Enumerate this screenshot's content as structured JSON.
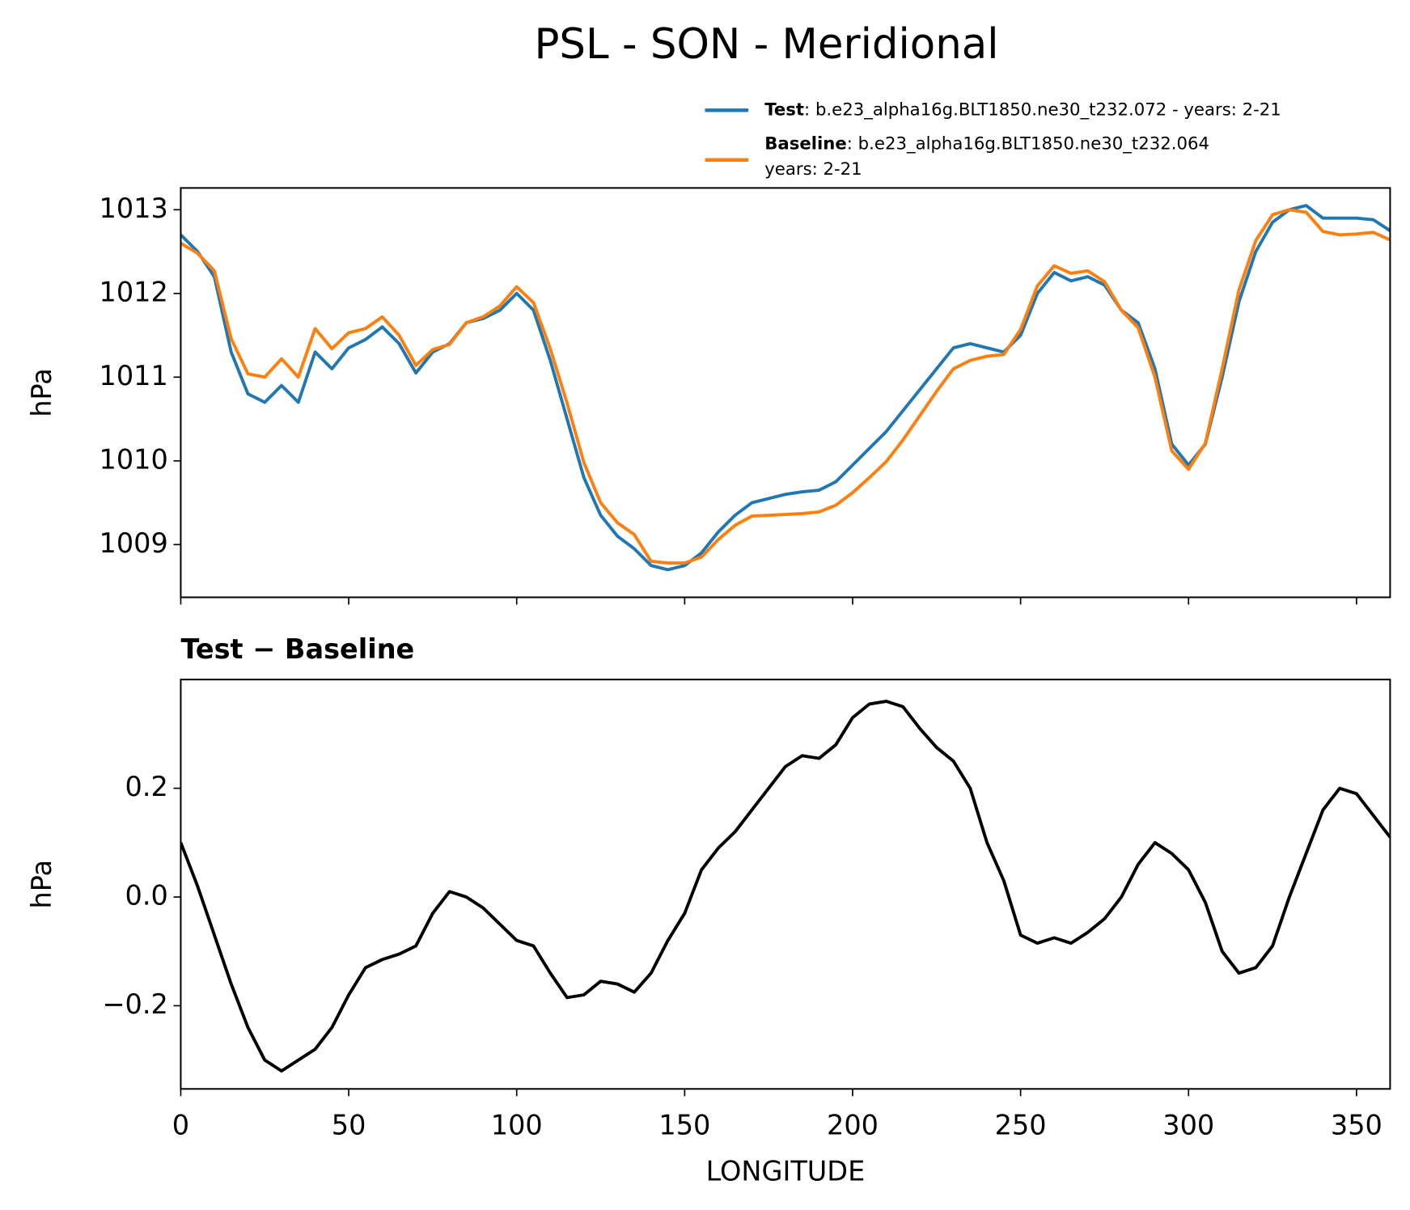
{
  "chart_data": [
    {
      "type": "line",
      "title": "PSL - SON - Meridional",
      "title_loc": "center",
      "ylabel": "hPa",
      "x": [
        0,
        5,
        10,
        15,
        20,
        25,
        30,
        35,
        40,
        45,
        50,
        55,
        60,
        65,
        70,
        75,
        80,
        85,
        90,
        95,
        100,
        105,
        110,
        115,
        120,
        125,
        130,
        135,
        140,
        145,
        150,
        155,
        160,
        165,
        170,
        175,
        180,
        185,
        190,
        195,
        200,
        205,
        210,
        215,
        220,
        225,
        230,
        235,
        240,
        245,
        250,
        255,
        260,
        265,
        270,
        275,
        280,
        285,
        290,
        295,
        300,
        305,
        310,
        315,
        320,
        325,
        330,
        335,
        340,
        345,
        350,
        355,
        360
      ],
      "xlim": [
        0,
        360
      ],
      "xticks": [
        0,
        50,
        100,
        150,
        200,
        250,
        300,
        350
      ],
      "show_xticklabels": false,
      "ylim": [
        1008.37,
        1013.26
      ],
      "yticks": [
        1009,
        1010,
        1011,
        1012,
        1013
      ],
      "legend": "above right",
      "series": [
        {
          "name": "Test",
          "label_lines": [
            ": b.e23_alpha16g.BLT1850.ne30_t232.072 - years: 2-21"
          ],
          "color": "#1f77b4",
          "values": [
            1012.7,
            1012.5,
            1012.2,
            1011.3,
            1010.8,
            1010.7,
            1010.9,
            1010.7,
            1011.3,
            1011.1,
            1011.35,
            1011.45,
            1011.6,
            1011.4,
            1011.05,
            1011.3,
            1011.4,
            1011.65,
            1011.7,
            1011.8,
            1012.0,
            1011.8,
            1011.2,
            1010.5,
            1009.8,
            1009.35,
            1009.1,
            1008.95,
            1008.75,
            1008.7,
            1008.75,
            1008.9,
            1009.15,
            1009.35,
            1009.5,
            1009.55,
            1009.6,
            1009.63,
            1009.65,
            1009.75,
            1009.95,
            1010.15,
            1010.35,
            1010.6,
            1010.85,
            1011.1,
            1011.35,
            1011.4,
            1011.35,
            1011.3,
            1011.5,
            1012.0,
            1012.25,
            1012.15,
            1012.2,
            1012.1,
            1011.8,
            1011.65,
            1011.1,
            1010.2,
            1009.95,
            1010.2,
            1011.0,
            1011.9,
            1012.5,
            1012.85,
            1013.0,
            1013.05,
            1012.9,
            1012.9,
            1012.9,
            1012.88,
            1012.75
          ]
        },
        {
          "name": "Baseline",
          "label_lines": [
            ": b.e23_alpha16g.BLT1850.ne30_t232.064",
            "years: 2-21"
          ],
          "color": "#ff7f0e",
          "values": [
            1012.6,
            1012.48,
            1012.27,
            1011.46,
            1011.04,
            1011.0,
            1011.22,
            1011.0,
            1011.58,
            1011.34,
            1011.53,
            1011.58,
            1011.72,
            1011.5,
            1011.14,
            1011.33,
            1011.39,
            1011.65,
            1011.72,
            1011.85,
            1012.08,
            1011.89,
            1011.34,
            1010.69,
            1009.98,
            1009.5,
            1009.26,
            1009.12,
            1008.8,
            1008.78,
            1008.78,
            1008.85,
            1009.06,
            1009.23,
            1009.34,
            1009.35,
            1009.36,
            1009.37,
            1009.39,
            1009.47,
            1009.62,
            1009.8,
            1009.99,
            1010.25,
            1010.54,
            1010.83,
            1011.1,
            1011.2,
            1011.25,
            1011.27,
            1011.57,
            1012.09,
            1012.33,
            1012.24,
            1012.27,
            1012.14,
            1011.8,
            1011.59,
            1011.0,
            1010.12,
            1009.9,
            1010.21,
            1011.1,
            1012.04,
            1012.63,
            1012.94,
            1013.0,
            1012.97,
            1012.74,
            1012.7,
            1012.71,
            1012.73,
            1012.64
          ]
        }
      ]
    },
    {
      "type": "line",
      "title": "Test − Baseline",
      "title_loc": "left",
      "ylabel": "hPa",
      "xlabel": "LONGITUDE",
      "x": [
        0,
        5,
        10,
        15,
        20,
        25,
        30,
        35,
        40,
        45,
        50,
        55,
        60,
        65,
        70,
        75,
        80,
        85,
        90,
        95,
        100,
        105,
        110,
        115,
        120,
        125,
        130,
        135,
        140,
        145,
        150,
        155,
        160,
        165,
        170,
        175,
        180,
        185,
        190,
        195,
        200,
        205,
        210,
        215,
        220,
        225,
        230,
        235,
        240,
        245,
        250,
        255,
        260,
        265,
        270,
        275,
        280,
        285,
        290,
        295,
        300,
        305,
        310,
        315,
        320,
        325,
        330,
        335,
        340,
        345,
        350,
        355,
        360
      ],
      "xlim": [
        0,
        360
      ],
      "xticks": [
        0,
        50,
        100,
        150,
        200,
        250,
        300,
        350
      ],
      "show_xticklabels": true,
      "ylim": [
        -0.353,
        0.4
      ],
      "yticks": [
        {
          "value": -0.2,
          "label": "−0.2"
        },
        {
          "value": 0,
          "label": "0.0"
        },
        0.2
      ],
      "series": [
        {
          "color": "#000000",
          "values": [
            0.1,
            0.02,
            -0.07,
            -0.16,
            -0.24,
            -0.3,
            -0.32,
            -0.3,
            -0.28,
            -0.24,
            -0.18,
            -0.13,
            -0.115,
            -0.105,
            -0.09,
            -0.03,
            0.01,
            0.0,
            -0.02,
            -0.05,
            -0.08,
            -0.09,
            -0.14,
            -0.185,
            -0.18,
            -0.155,
            -0.16,
            -0.175,
            -0.14,
            -0.08,
            -0.03,
            0.05,
            0.09,
            0.12,
            0.16,
            0.2,
            0.24,
            0.26,
            0.255,
            0.28,
            0.33,
            0.355,
            0.36,
            0.35,
            0.31,
            0.275,
            0.25,
            0.2,
            0.1,
            0.03,
            -0.07,
            -0.085,
            -0.075,
            -0.085,
            -0.065,
            -0.04,
            0.0,
            0.06,
            0.1,
            0.08,
            0.05,
            -0.01,
            -0.1,
            -0.14,
            -0.13,
            -0.09,
            0.0,
            0.08,
            0.16,
            0.2,
            0.19,
            0.15,
            0.11
          ]
        }
      ]
    }
  ]
}
